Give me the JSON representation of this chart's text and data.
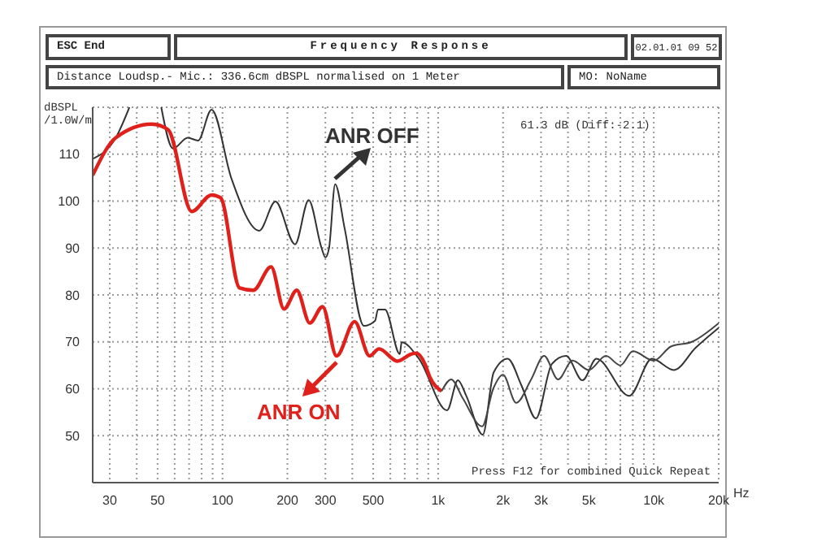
{
  "chart_data": {
    "type": "line",
    "title": "Frequency Response",
    "ylabel": "dBSPL /1.0W/m",
    "annotations": [
      "ESC End",
      "02.01.01 09 52",
      "Distance Loudsp.- Mic.: 336.6cm dBSPL normalised on 1 Meter",
      "MO: NoName",
      "61.3 dB (Diff:-2.1)",
      "Press F12 for combined Quick Repeat"
    ],
    "xlabel": "Hz",
    "xlim": [
      25,
      20000
    ],
    "ylim": [
      40,
      120
    ],
    "log": "x",
    "grid": true,
    "legend": "bottom left",
    "marker": "none",
    "line_style": "solid",
    "xticks": [
      {
        "value": 30,
        "label": "30"
      },
      {
        "value": 40,
        "label": null
      },
      {
        "value": 50,
        "label": "50"
      },
      {
        "value": 60,
        "label": null
      },
      {
        "value": 70,
        "label": null
      },
      {
        "value": 80,
        "label": null
      },
      {
        "value": 90,
        "label": null
      },
      {
        "value": 100,
        "label": "100"
      },
      {
        "value": 200,
        "label": "200"
      },
      {
        "value": 300,
        "label": "300"
      },
      {
        "value": 400,
        "label": null
      },
      {
        "value": 500,
        "label": "500"
      },
      {
        "value": 600,
        "label": null
      },
      {
        "value": 700,
        "label": null
      },
      {
        "value": 800,
        "label": null
      },
      {
        "value": 900,
        "label": null
      },
      {
        "value": 1000,
        "label": "1k"
      },
      {
        "value": 2000,
        "label": "2k"
      },
      {
        "value": 3000,
        "label": "3k"
      },
      {
        "value": 4000,
        "label": null
      },
      {
        "value": 5000,
        "label": "5k"
      },
      {
        "value": 6000,
        "label": null
      },
      {
        "value": 7000,
        "label": null
      },
      {
        "value": 8000,
        "label": null
      },
      {
        "value": 9000,
        "label": null
      },
      {
        "value": 10000,
        "label": "10k"
      },
      {
        "value": 20000,
        "label": "20k"
      }
    ],
    "yticks": [
      {
        "value": 40,
        "label": null
      },
      50,
      60,
      70,
      80,
      90,
      100,
      110,
      {
        "value": 120,
        "label": null
      }
    ],
    "series": [
      {
        "name": "ANR OFF",
        "color": "#333333",
        "x": [
          25,
          32,
          37,
          44,
          52,
          59,
          69,
          77,
          89,
          110,
          148,
          176,
          217,
          251,
          288,
          300,
          312,
          333,
          368,
          453,
          510,
          526,
          567,
          664,
          677,
          815,
          1100,
          1235,
          1350,
          1610,
          1810,
          2100,
          2440,
          2840,
          3370,
          3920,
          4670,
          5420,
          7700,
          9800,
          12400,
          15600,
          20000
        ],
        "values": [
          109,
          113.5,
          120,
          null,
          120,
          111.2,
          113.5,
          112.9,
          119.5,
          104.8,
          93.7,
          99.9,
          90.8,
          100.2,
          90,
          88,
          90,
          103.6,
          94.3,
          73.4,
          74.5,
          76.9,
          76.9,
          67.4,
          69.9,
          66.4,
          55.4,
          61.8,
          58.5,
          50.2,
          63.5,
          66.4,
          60.6,
          53.7,
          65.3,
          67,
          61.8,
          66.4,
          58.5,
          66.4,
          64,
          68.7,
          73
        ]
      },
      {
        "name": "ANR ON",
        "color": "#e0201b",
        "x": [
          25,
          32,
          47,
          56,
          72,
          89,
          98,
          120,
          139,
          168,
          193,
          221,
          254,
          291,
          338,
          410,
          481,
          532,
          647,
          750,
          794,
          868,
          915,
          1038
        ],
        "values": [
          105.5,
          113.5,
          116.4,
          115.2,
          97.8,
          101.3,
          100.7,
          81.5,
          81,
          86,
          77,
          81,
          74,
          77.5,
          67,
          74.3,
          67,
          68.5,
          65.9,
          67.4,
          67.6,
          65.3,
          62.5,
          59.5
        ]
      },
      {
        "color": "#444444",
        "x": [
          1038,
          1150,
          1300,
          1600,
          1800,
          2000,
          2300,
          2700,
          3100,
          3600,
          4200,
          5000,
          6000,
          7000,
          8000,
          10000,
          12000,
          15000,
          20000
        ],
        "values": [
          59.5,
          62,
          58,
          52,
          60,
          63,
          57,
          62,
          67,
          62,
          66,
          64,
          67,
          65,
          68,
          66,
          69,
          70,
          74
        ]
      }
    ]
  }
}
